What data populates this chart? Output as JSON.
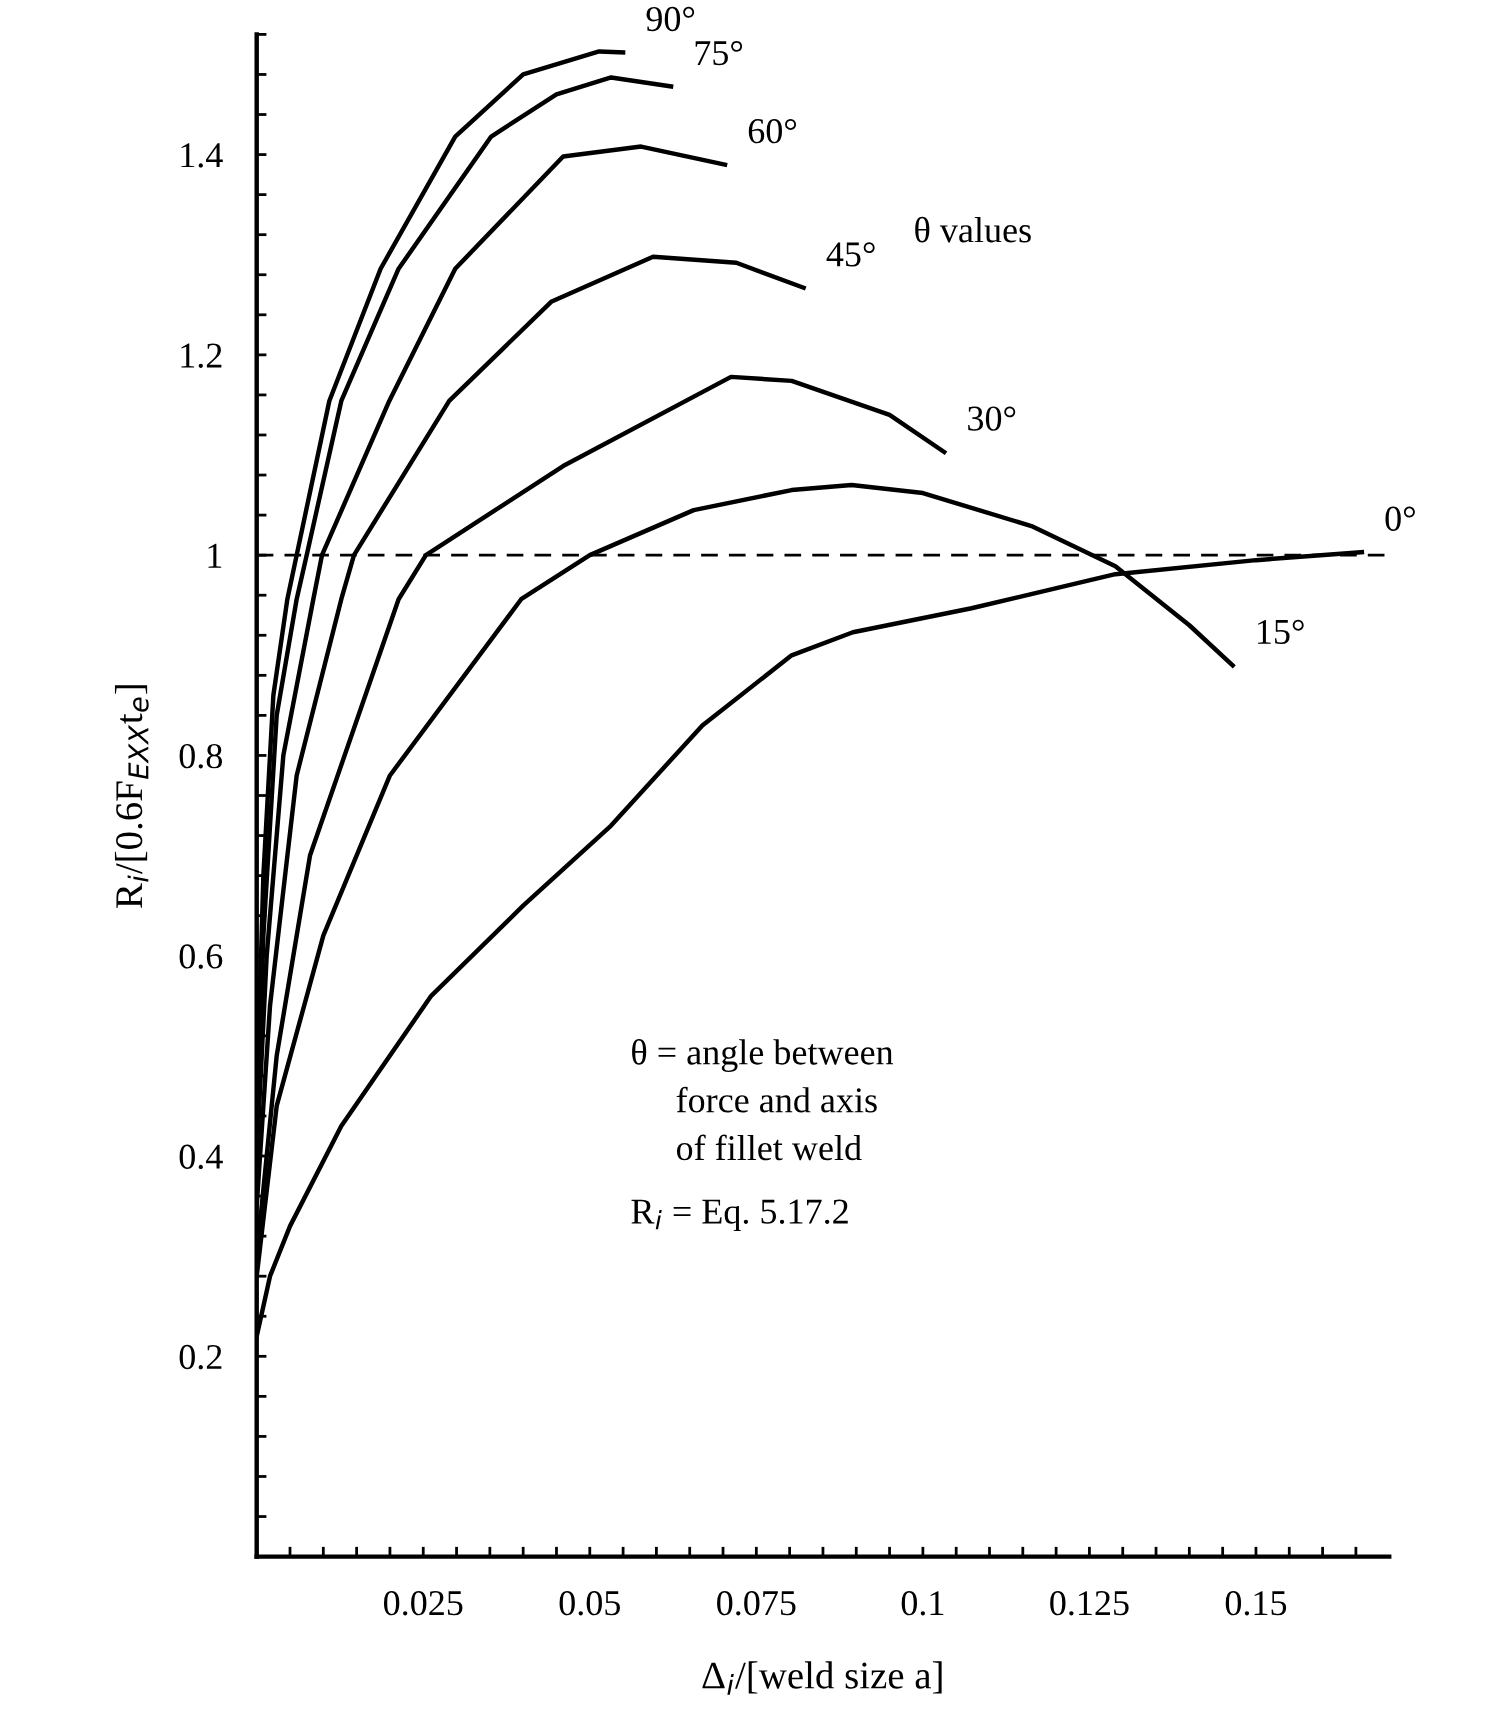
{
  "chart_data": {
    "type": "line",
    "xlabel": "Δ$_{i}$/[weld size a]",
    "ylabel": "R$_{i}$/[0.6F$_{EXX}$t$_{e}$]",
    "xlim": [
      0,
      0.17
    ],
    "ylim": [
      0,
      1.52
    ],
    "xticks": [
      {
        "value": 0.005,
        "label": null
      },
      {
        "value": 0.01,
        "label": null
      },
      {
        "value": 0.015,
        "label": null
      },
      {
        "value": 0.02,
        "label": null
      },
      0.025,
      {
        "value": 0.03,
        "label": null
      },
      {
        "value": 0.035,
        "label": null
      },
      {
        "value": 0.04,
        "label": null
      },
      {
        "value": 0.045,
        "label": null
      },
      0.05,
      {
        "value": 0.055,
        "label": null
      },
      {
        "value": 0.06,
        "label": null
      },
      {
        "value": 0.065,
        "label": null
      },
      {
        "value": 0.07,
        "label": null
      },
      0.075,
      {
        "value": 0.08,
        "label": null
      },
      {
        "value": 0.085,
        "label": null
      },
      {
        "value": 0.09,
        "label": null
      },
      {
        "value": 0.095,
        "label": null
      },
      0.1,
      {
        "value": 0.105,
        "label": null
      },
      {
        "value": 0.11,
        "label": null
      },
      {
        "value": 0.115,
        "label": null
      },
      {
        "value": 0.12,
        "label": null
      },
      0.125,
      {
        "value": 0.13,
        "label": null
      },
      {
        "value": 0.135,
        "label": null
      },
      {
        "value": 0.14,
        "label": null
      },
      {
        "value": 0.145,
        "label": null
      },
      0.15,
      {
        "value": 0.155,
        "label": null
      },
      {
        "value": 0.16,
        "label": null
      },
      {
        "value": 0.165,
        "label": null
      }
    ],
    "yticks": [
      {
        "value": 0.04,
        "label": null
      },
      {
        "value": 0.08,
        "label": null
      },
      {
        "value": 0.12,
        "label": null
      },
      {
        "value": 0.16,
        "label": null
      },
      0.2,
      {
        "value": 0.24,
        "label": null
      },
      {
        "value": 0.28,
        "label": null
      },
      {
        "value": 0.32,
        "label": null
      },
      {
        "value": 0.36,
        "label": null
      },
      0.4,
      {
        "value": 0.44,
        "label": null
      },
      {
        "value": 0.48,
        "label": null
      },
      {
        "value": 0.52,
        "label": null
      },
      {
        "value": 0.56,
        "label": null
      },
      0.6,
      {
        "value": 0.64,
        "label": null
      },
      {
        "value": 0.68,
        "label": null
      },
      {
        "value": 0.72,
        "label": null
      },
      {
        "value": 0.76,
        "label": null
      },
      0.8,
      {
        "value": 0.84,
        "label": null
      },
      {
        "value": 0.88,
        "label": null
      },
      {
        "value": 0.92,
        "label": null
      },
      {
        "value": 0.96,
        "label": null
      },
      1,
      {
        "value": 1.04,
        "label": null
      },
      {
        "value": 1.08,
        "label": null
      },
      {
        "value": 1.12,
        "label": null
      },
      {
        "value": 1.16,
        "label": null
      },
      1.2,
      {
        "value": 1.24,
        "label": null
      },
      {
        "value": 1.28,
        "label": null
      },
      {
        "value": 1.32,
        "label": null
      },
      {
        "value": 1.36,
        "label": null
      },
      1.4,
      {
        "value": 1.44,
        "label": null
      },
      {
        "value": 1.48,
        "label": null
      },
      {
        "value": 1.52,
        "label": null
      }
    ],
    "grid": false,
    "legend": false,
    "marker": "none",
    "line_style": "solid",
    "ref_lines": [
      {
        "axis": "y",
        "value": 1,
        "color": "#000000",
        "line_style": "dashed"
      }
    ],
    "series": [
      {
        "name": "90°",
        "color": "#000000",
        "x": [
          0,
          0.001,
          0.0025,
          0.0046,
          0.006,
          0.0109,
          0.0186,
          0.0298,
          0.04,
          0.0514,
          0.055
        ],
        "values": [
          0.45,
          0.68,
          0.86,
          0.956,
          1.0,
          1.154,
          1.286,
          1.418,
          1.48,
          1.503,
          1.502
        ]
      },
      {
        "name": "75°",
        "color": "#000000",
        "x": [
          0,
          0.001,
          0.003,
          0.006,
          0.0075,
          0.0127,
          0.0213,
          0.0352,
          0.045,
          0.0532,
          0.0622
        ],
        "values": [
          0.42,
          0.62,
          0.84,
          0.956,
          1.0,
          1.154,
          1.286,
          1.418,
          1.46,
          1.477,
          1.468
        ]
      },
      {
        "name": "60°",
        "color": "#000000",
        "x": [
          0,
          0.0015,
          0.004,
          0.0085,
          0.0098,
          0.0199,
          0.0298,
          0.046,
          0.0577,
          0.0703
        ],
        "values": [
          0.4,
          0.6,
          0.8,
          0.956,
          1.0,
          1.154,
          1.286,
          1.398,
          1.408,
          1.39
        ]
      },
      {
        "name": "45°",
        "color": "#000000",
        "x": [
          0,
          0.002,
          0.006,
          0.0127,
          0.0146,
          0.0289,
          0.0442,
          0.0595,
          0.072,
          0.0821
        ],
        "values": [
          0.35,
          0.55,
          0.78,
          0.956,
          1.0,
          1.154,
          1.253,
          1.298,
          1.292,
          1.267
        ]
      },
      {
        "name": "30°",
        "color": "#000000",
        "x": [
          0,
          0.003,
          0.008,
          0.0213,
          0.0254,
          0.046,
          0.0712,
          0.0803,
          0.095,
          0.1032
        ],
        "values": [
          0.3,
          0.5,
          0.7,
          0.956,
          1.0,
          1.089,
          1.178,
          1.174,
          1.14,
          1.103
        ]
      },
      {
        "name": "15°",
        "color": "#000000",
        "x": [
          0,
          0.003,
          0.01,
          0.02,
          0.0397,
          0.05,
          0.0656,
          0.0803,
          0.0893,
          0.1,
          0.1163,
          0.1289,
          0.14,
          0.1465
        ],
        "values": [
          0.28,
          0.45,
          0.62,
          0.78,
          0.956,
          1.0,
          1.045,
          1.065,
          1.07,
          1.062,
          1.029,
          0.989,
          0.93,
          0.89
        ]
      },
      {
        "name": "0°",
        "color": "#000000",
        "x": [
          0,
          0.002,
          0.005,
          0.0127,
          0.0262,
          0.04,
          0.0532,
          0.0669,
          0.0803,
          0.0895,
          0.1073,
          0.1289,
          0.15,
          0.1659
        ],
        "values": [
          0.22,
          0.28,
          0.33,
          0.43,
          0.56,
          0.65,
          0.73,
          0.83,
          0.9,
          0.923,
          0.947,
          0.981,
          0.995,
          1.003
        ]
      }
    ],
    "annotations": [
      "θ values",
      "θ = angle between\n     force and axis\n     of fillet weld",
      "R$_{i}$ = Eq. 5.17.2"
    ]
  }
}
